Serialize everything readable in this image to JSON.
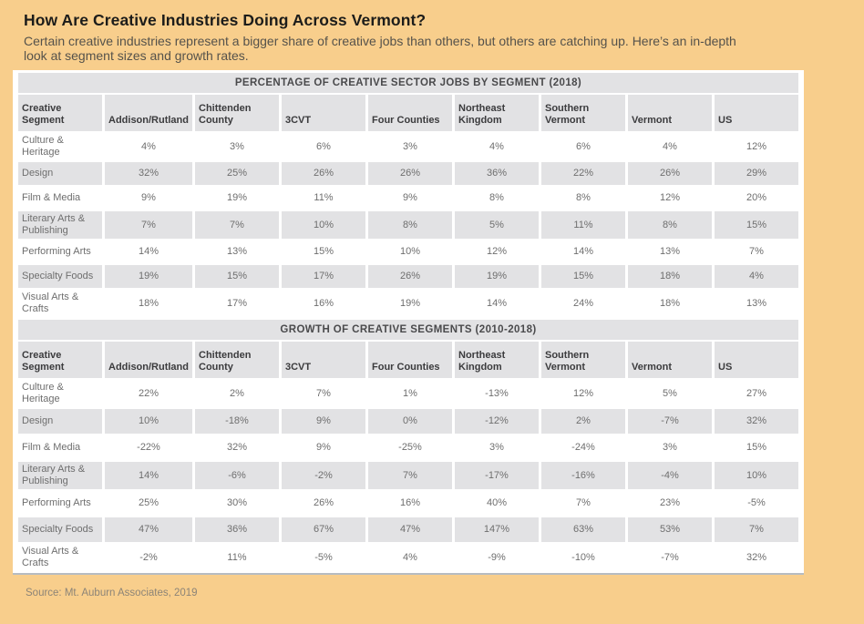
{
  "header": {
    "title": "How Are Creative Industries Doing Across Vermont?",
    "subtitle": "Certain creative industries represent a bigger share of creative jobs than others, but others are catching up. Here’s an in-depth look at segment sizes and growth rates."
  },
  "chart_data": [
    {
      "type": "table",
      "title": "PERCENTAGE OF CREATIVE SECTOR JOBS BY SEGMENT (2018)",
      "columns": [
        "Creative Segment",
        "Addison/Rutland",
        "Chittenden County",
        "3CVT",
        "Four Counties",
        "Northeast Kingdom",
        "Southern Vermont",
        "Vermont",
        "US"
      ],
      "rows": [
        {
          "segment": "Culture & Heritage",
          "values": [
            "4%",
            "3%",
            "6%",
            "3%",
            "4%",
            "6%",
            "4%",
            "12%"
          ]
        },
        {
          "segment": "Design",
          "values": [
            "32%",
            "25%",
            "26%",
            "26%",
            "36%",
            "22%",
            "26%",
            "29%"
          ]
        },
        {
          "segment": "Film & Media",
          "values": [
            "9%",
            "19%",
            "11%",
            "9%",
            "8%",
            "8%",
            "12%",
            "20%"
          ]
        },
        {
          "segment": "Literary Arts & Publishing",
          "values": [
            "7%",
            "7%",
            "10%",
            "8%",
            "5%",
            "11%",
            "8%",
            "15%"
          ]
        },
        {
          "segment": "Performing Arts",
          "values": [
            "14%",
            "13%",
            "15%",
            "10%",
            "12%",
            "14%",
            "13%",
            "7%"
          ]
        },
        {
          "segment": "Specialty Foods",
          "values": [
            "19%",
            "15%",
            "17%",
            "26%",
            "19%",
            "15%",
            "18%",
            "4%"
          ]
        },
        {
          "segment": "Visual Arts & Crafts",
          "values": [
            "18%",
            "17%",
            "16%",
            "19%",
            "14%",
            "24%",
            "18%",
            "13%"
          ]
        }
      ]
    },
    {
      "type": "table",
      "title": "GROWTH OF CREATIVE SEGMENTS (2010-2018)",
      "columns": [
        "Creative Segment",
        "Addison/Rutland",
        "Chittenden County",
        "3CVT",
        "Four Counties",
        "Northeast Kingdom",
        "Southern Vermont",
        "Vermont",
        "US"
      ],
      "rows": [
        {
          "segment": "Culture & Heritage",
          "values": [
            "22%",
            "2%",
            "7%",
            "1%",
            "-13%",
            "12%",
            "5%",
            "27%"
          ]
        },
        {
          "segment": "Design",
          "values": [
            "10%",
            "-18%",
            "9%",
            "0%",
            "-12%",
            "2%",
            "-7%",
            "32%"
          ]
        },
        {
          "segment": "Film & Media",
          "values": [
            "-22%",
            "32%",
            "9%",
            "-25%",
            "3%",
            "-24%",
            "3%",
            "15%"
          ]
        },
        {
          "segment": "Literary Arts & Publishing",
          "values": [
            "14%",
            "-6%",
            "-2%",
            "7%",
            "-17%",
            "-16%",
            "-4%",
            "10%"
          ]
        },
        {
          "segment": "Performing Arts",
          "values": [
            "25%",
            "30%",
            "26%",
            "16%",
            "40%",
            "7%",
            "23%",
            "-5%"
          ]
        },
        {
          "segment": "Specialty Foods",
          "values": [
            "47%",
            "36%",
            "67%",
            "47%",
            "147%",
            "63%",
            "53%",
            "7%"
          ]
        },
        {
          "segment": "Visual Arts & Crafts",
          "values": [
            "-2%",
            "11%",
            "-5%",
            "4%",
            "-9%",
            "-10%",
            "-7%",
            "32%"
          ]
        }
      ]
    }
  ],
  "footer": {
    "source": "Source: Mt. Auburn Associates, 2019"
  },
  "colors": {
    "background": "#f8ce8c",
    "panel": "#ffffff",
    "band_gray": "#e2e2e4",
    "row_alt": "#e2e2e4",
    "row_base": "#ffffff",
    "header_text": "#3b3b3d",
    "cell_text": "#6e6e6e",
    "title_text": "#1c1c1a",
    "subtitle_text": "#55524b",
    "source_text": "#8c8477",
    "panel_border": "#b7bcc1"
  }
}
